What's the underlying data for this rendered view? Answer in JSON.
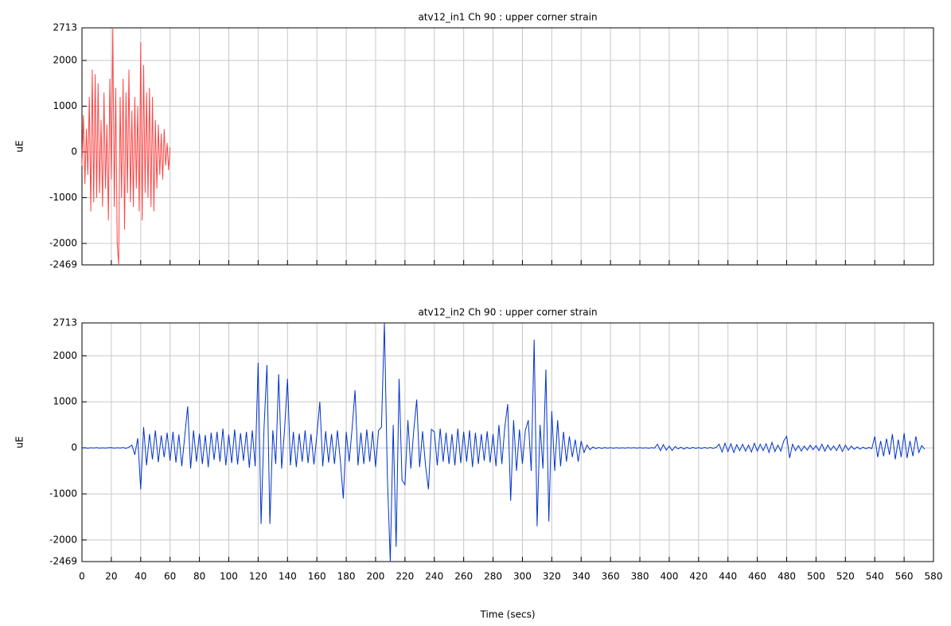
{
  "chart_data": [
    {
      "type": "line",
      "title": "atv12_in1  Ch 90 : upper corner strain",
      "ylabel": "uE",
      "color": "#ff4444",
      "xlim": [
        0,
        580
      ],
      "xticks": [
        0,
        20,
        40,
        60,
        80,
        100,
        120,
        140,
        160,
        180,
        200,
        220,
        240,
        260,
        280,
        300,
        320,
        340,
        360,
        380,
        400,
        420,
        440,
        460,
        480,
        500,
        520,
        540,
        560,
        580
      ],
      "ylim": [
        -2469,
        2713
      ],
      "yticks": [
        -2469,
        -2000,
        -1000,
        0,
        1000,
        2000,
        2713
      ],
      "grid": true,
      "x": [
        0,
        1,
        2,
        3,
        4,
        5,
        6,
        7,
        8,
        9,
        10,
        11,
        12,
        13,
        14,
        15,
        16,
        17,
        18,
        19,
        20,
        21,
        22,
        23,
        24,
        25,
        26,
        27,
        28,
        29,
        30,
        31,
        32,
        33,
        34,
        35,
        36,
        37,
        38,
        39,
        40,
        41,
        42,
        43,
        44,
        45,
        46,
        47,
        48,
        49,
        50,
        51,
        52,
        53,
        54,
        55,
        56,
        57,
        58,
        59,
        60
      ],
      "values": [
        -300,
        800,
        -700,
        500,
        -500,
        1200,
        -1300,
        1800,
        -1100,
        1700,
        -1000,
        1500,
        -900,
        700,
        -1200,
        1300,
        -800,
        600,
        -1500,
        1600,
        -600,
        2713,
        -1200,
        1400,
        -2000,
        -2469,
        1200,
        -1000,
        1600,
        -1700,
        1300,
        -900,
        1800,
        -1100,
        900,
        -1200,
        1200,
        -800,
        1000,
        -1300,
        2400,
        -1500,
        1900,
        -900,
        1300,
        -1000,
        1400,
        -1200,
        1200,
        -1300,
        700,
        -800,
        600,
        -500,
        400,
        -600,
        500,
        -300,
        200,
        -400,
        100
      ]
    },
    {
      "type": "line",
      "title": "atv12_in2  Ch 90 : upper corner strain",
      "ylabel": "uE",
      "xlabel": "Time (secs)",
      "color": "#0033cc",
      "xlim": [
        0,
        580
      ],
      "xticks": [
        0,
        20,
        40,
        60,
        80,
        100,
        120,
        140,
        160,
        180,
        200,
        220,
        240,
        260,
        280,
        300,
        320,
        340,
        360,
        380,
        400,
        420,
        440,
        460,
        480,
        500,
        520,
        540,
        560,
        580
      ],
      "ylim": [
        -2469,
        2713
      ],
      "yticks": [
        -2469,
        -2000,
        -1000,
        0,
        1000,
        2000,
        2713
      ],
      "grid": true,
      "x": [
        0,
        2,
        4,
        6,
        8,
        10,
        12,
        14,
        16,
        18,
        20,
        22,
        24,
        26,
        28,
        30,
        32,
        34,
        36,
        38,
        40,
        42,
        44,
        46,
        48,
        50,
        52,
        54,
        56,
        58,
        60,
        62,
        64,
        66,
        68,
        70,
        72,
        74,
        76,
        78,
        80,
        82,
        84,
        86,
        88,
        90,
        92,
        94,
        96,
        98,
        100,
        102,
        104,
        106,
        108,
        110,
        112,
        114,
        116,
        118,
        120,
        122,
        124,
        126,
        128,
        130,
        132,
        134,
        136,
        138,
        140,
        142,
        144,
        146,
        148,
        150,
        152,
        154,
        156,
        158,
        160,
        162,
        164,
        166,
        168,
        170,
        172,
        174,
        176,
        178,
        180,
        182,
        184,
        186,
        188,
        190,
        192,
        194,
        196,
        198,
        200,
        202,
        204,
        206,
        208,
        210,
        212,
        214,
        216,
        218,
        220,
        222,
        224,
        226,
        228,
        230,
        232,
        234,
        236,
        238,
        240,
        242,
        244,
        246,
        248,
        250,
        252,
        254,
        256,
        258,
        260,
        262,
        264,
        266,
        268,
        270,
        272,
        274,
        276,
        278,
        280,
        282,
        284,
        286,
        288,
        290,
        292,
        294,
        296,
        298,
        300,
        302,
        304,
        306,
        308,
        310,
        312,
        314,
        316,
        318,
        320,
        322,
        324,
        326,
        328,
        330,
        332,
        334,
        336,
        338,
        340,
        342,
        344,
        346,
        348,
        350,
        352,
        354,
        356,
        358,
        360,
        362,
        364,
        366,
        368,
        370,
        372,
        374,
        376,
        378,
        380,
        382,
        384,
        386,
        388,
        390,
        392,
        394,
        396,
        398,
        400,
        402,
        404,
        406,
        408,
        410,
        412,
        414,
        416,
        418,
        420,
        422,
        424,
        426,
        428,
        430,
        432,
        434,
        436,
        438,
        440,
        442,
        444,
        446,
        448,
        450,
        452,
        454,
        456,
        458,
        460,
        462,
        464,
        466,
        468,
        470,
        472,
        474,
        476,
        478,
        480,
        482,
        484,
        486,
        488,
        490,
        492,
        494,
        496,
        498,
        500,
        502,
        504,
        506,
        508,
        510,
        512,
        514,
        516,
        518,
        520,
        522,
        524,
        526,
        528,
        530,
        532,
        534,
        536,
        538,
        540,
        542,
        544,
        546,
        548,
        550,
        552,
        554,
        556,
        558,
        560,
        562,
        564,
        566,
        568,
        570,
        572,
        574
      ],
      "values": [
        0,
        5,
        -8,
        4,
        -3,
        6,
        -5,
        2,
        -4,
        3,
        5,
        -6,
        3,
        -4,
        8,
        -10,
        15,
        60,
        -150,
        210,
        -900,
        450,
        -380,
        300,
        -250,
        380,
        -310,
        270,
        -200,
        330,
        -280,
        350,
        -320,
        290,
        -400,
        250,
        900,
        -450,
        380,
        -300,
        310,
        -350,
        280,
        -420,
        330,
        -260,
        350,
        -300,
        420,
        -380,
        290,
        -330,
        400,
        -360,
        320,
        -280,
        350,
        -430,
        380,
        -400,
        1850,
        -1650,
        420,
        1800,
        -1650,
        380,
        -350,
        1600,
        -450,
        400,
        1500,
        -380,
        350,
        -420,
        310,
        -300,
        380,
        -330,
        300,
        -360,
        280,
        1000,
        -400,
        360,
        -320,
        300,
        -350,
        380,
        -280,
        -1100,
        350,
        -300,
        420,
        1250,
        -380,
        330,
        -350,
        400,
        -300,
        360,
        -420,
        380,
        450,
        2713,
        -600,
        -2469,
        500,
        -2150,
        1500,
        -700,
        -800,
        600,
        -450,
        380,
        1050,
        -420,
        360,
        -380,
        -900,
        400,
        350,
        -380,
        420,
        -300,
        330,
        -350,
        300,
        -380,
        420,
        -330,
        350,
        -300,
        380,
        -420,
        330,
        -350,
        300,
        -280,
        360,
        -320,
        300,
        -400,
        500,
        -350,
        450,
        950,
        -1150,
        600,
        -500,
        400,
        -350,
        380,
        600,
        -500,
        2350,
        -1700,
        500,
        -450,
        1700,
        -1600,
        800,
        -500,
        600,
        -400,
        350,
        -300,
        250,
        -200,
        180,
        -300,
        150,
        -100,
        60,
        -40,
        20,
        -15,
        10,
        -12,
        8,
        -6,
        5,
        -8,
        6,
        -5,
        4,
        -6,
        5,
        -4,
        6,
        -5,
        5,
        -6,
        4,
        -8,
        6,
        -5,
        80,
        -60,
        70,
        -50,
        40,
        -60,
        30,
        -20,
        15,
        -25,
        10,
        -15,
        12,
        -10,
        8,
        -12,
        10,
        -8,
        9,
        -10,
        12,
        80,
        -90,
        100,
        -80,
        90,
        -100,
        70,
        -60,
        80,
        -70,
        60,
        -90,
        100,
        -70,
        80,
        -60,
        90,
        -100,
        120,
        -80,
        60,
        -70,
        150,
        250,
        -220,
        80,
        -60,
        50,
        -70,
        40,
        -50,
        60,
        -40,
        50,
        -60,
        80,
        -70,
        60,
        -50,
        40,
        -60,
        70,
        -80,
        60,
        -50,
        40,
        -30,
        20,
        -25,
        15,
        -20,
        10,
        -15,
        250,
        -200,
        150,
        -180,
        200,
        -150,
        300,
        -250,
        180,
        -200,
        320,
        -220,
        150,
        -180,
        250,
        -100,
        50,
        -30
      ]
    }
  ]
}
